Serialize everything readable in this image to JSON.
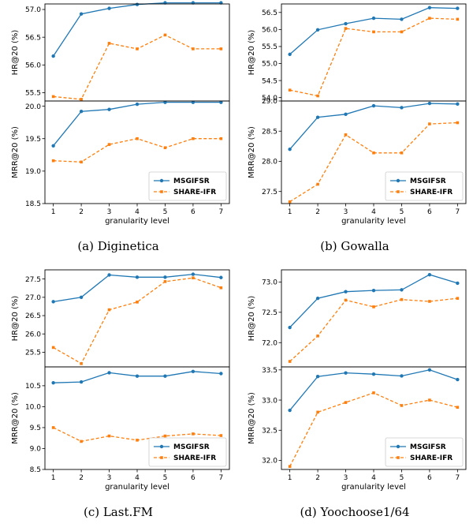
{
  "colors": {
    "msgifsr": "#1f77b4",
    "share_ifr": "#ff7f0e"
  },
  "legend": {
    "msgifsr": "MSGIFSR",
    "share_ifr": "SHARE-IFR",
    "placement": "bottom-right"
  },
  "captions": [
    "(a)  Diginetica",
    "(b)  Gowalla",
    "(c)  Last.FM",
    "(d)  Yoochoose1/64"
  ],
  "chart_data": [
    {
      "type": "line",
      "xlabel": "granularity level",
      "x": [
        1,
        2,
        3,
        4,
        5,
        6,
        7
      ],
      "top": {
        "ylabel": "HR@20 (%)",
        "ylim": [
          55.35,
          57.1
        ],
        "yticks": [
          55.5,
          56.0,
          56.5,
          57.0
        ],
        "ytick_labels": [
          "55.5",
          "56.0",
          "56.5",
          "57.0"
        ],
        "series": [
          {
            "name": "MSGIFSR",
            "values": [
              56.16,
              56.92,
              57.02,
              57.09,
              57.12,
              57.12,
              57.12
            ]
          },
          {
            "name": "SHARE-IFR",
            "values": [
              55.43,
              55.38,
              56.39,
              56.29,
              56.54,
              56.29,
              56.29
            ]
          }
        ]
      },
      "bottom": {
        "ylabel": "MRR@20 (%)",
        "ylim": [
          18.5,
          20.08
        ],
        "yticks": [
          18.5,
          19.0,
          19.5,
          20.0
        ],
        "ytick_labels": [
          "18.5",
          "19.0",
          "19.5",
          "20.0"
        ],
        "series": [
          {
            "name": "MSGIFSR",
            "values": [
              19.39,
              19.92,
              19.95,
              20.03,
              20.06,
              20.06,
              20.06
            ]
          },
          {
            "name": "SHARE-IFR",
            "values": [
              19.16,
              19.14,
              19.41,
              19.5,
              19.36,
              19.5,
              19.5
            ]
          }
        ]
      }
    },
    {
      "type": "line",
      "xlabel": "granularity level",
      "x": [
        1,
        2,
        3,
        4,
        5,
        6,
        7
      ],
      "top": {
        "ylabel": "HR@20 (%)",
        "ylim": [
          53.9,
          56.75
        ],
        "yticks": [
          54.0,
          54.5,
          55.0,
          55.5,
          56.0,
          56.5
        ],
        "ytick_labels": [
          "54.0",
          "54.5",
          "55.0",
          "55.5",
          "56.0",
          "56.5"
        ],
        "series": [
          {
            "name": "MSGIFSR",
            "values": [
              55.27,
              55.99,
              56.17,
              56.33,
              56.3,
              56.64,
              56.62
            ]
          },
          {
            "name": "SHARE-IFR",
            "values": [
              54.22,
              54.05,
              56.03,
              55.93,
              55.93,
              56.33,
              56.3
            ]
          }
        ]
      },
      "bottom": {
        "ylabel": "MRR@20 (%)",
        "ylim": [
          27.3,
          29.0
        ],
        "yticks": [
          27.5,
          28.0,
          28.5,
          29.0
        ],
        "ytick_labels": [
          "27.5",
          "28.0",
          "28.5",
          "29.0"
        ],
        "series": [
          {
            "name": "MSGIFSR",
            "values": [
              28.2,
              28.73,
              28.78,
              28.92,
              28.89,
              28.96,
              28.95
            ]
          },
          {
            "name": "SHARE-IFR",
            "values": [
              27.33,
              27.62,
              28.44,
              28.14,
              28.14,
              28.62,
              28.64
            ]
          }
        ]
      }
    },
    {
      "type": "line",
      "xlabel": "granularity level",
      "x": [
        1,
        2,
        3,
        4,
        5,
        6,
        7
      ],
      "top": {
        "ylabel": "HR@20 (%)",
        "ylim": [
          25.1,
          27.75
        ],
        "yticks": [
          25.5,
          26.0,
          26.5,
          27.0,
          27.5
        ],
        "ytick_labels": [
          "25.5",
          "26.0",
          "26.5",
          "27.0",
          "27.5"
        ],
        "series": [
          {
            "name": "MSGIFSR",
            "values": [
              26.88,
              27.0,
              27.61,
              27.55,
              27.55,
              27.63,
              27.54
            ]
          },
          {
            "name": "SHARE-IFR",
            "values": [
              25.63,
              25.19,
              26.66,
              26.87,
              27.43,
              27.53,
              27.26
            ]
          }
        ]
      },
      "bottom": {
        "ylabel": "MRR@20 (%)",
        "ylim": [
          8.5,
          10.95
        ],
        "yticks": [
          8.5,
          9.0,
          9.5,
          10.0,
          10.5
        ],
        "ytick_labels": [
          "8.5",
          "9.0",
          "9.5",
          "10.0",
          "10.5"
        ],
        "series": [
          {
            "name": "MSGIFSR",
            "values": [
              10.57,
              10.59,
              10.81,
              10.73,
              10.73,
              10.84,
              10.79
            ]
          },
          {
            "name": "SHARE-IFR",
            "values": [
              9.5,
              9.17,
              9.3,
              9.2,
              9.3,
              9.35,
              9.31
            ]
          }
        ]
      }
    },
    {
      "type": "line",
      "xlabel": "granularity level",
      "x": [
        1,
        2,
        3,
        4,
        5,
        6,
        7
      ],
      "top": {
        "ylabel": "HR@20 (%)",
        "ylim": [
          71.6,
          73.2
        ],
        "yticks": [
          72.0,
          72.5,
          73.0
        ],
        "ytick_labels": [
          "72.0",
          "72.5",
          "73.0"
        ],
        "series": [
          {
            "name": "MSGIFSR",
            "values": [
              72.25,
              72.73,
              72.84,
              72.86,
              72.87,
              73.12,
              72.98
            ]
          },
          {
            "name": "SHARE-IFR",
            "values": [
              71.69,
              72.11,
              72.7,
              72.59,
              72.71,
              72.68,
              72.73
            ]
          }
        ]
      },
      "bottom": {
        "ylabel": "MRR@20 (%)",
        "ylim": [
          31.85,
          33.55
        ],
        "yticks": [
          32.0,
          32.5,
          33.0,
          33.5
        ],
        "ytick_labels": [
          "32.0",
          "32.5",
          "33.0",
          "33.5"
        ],
        "series": [
          {
            "name": "MSGIFSR",
            "values": [
              32.83,
              33.39,
              33.45,
              33.43,
              33.4,
              33.5,
              33.34
            ]
          },
          {
            "name": "SHARE-IFR",
            "values": [
              31.9,
              32.8,
              32.96,
              33.12,
              32.91,
              33.0,
              32.88
            ]
          }
        ]
      }
    }
  ]
}
